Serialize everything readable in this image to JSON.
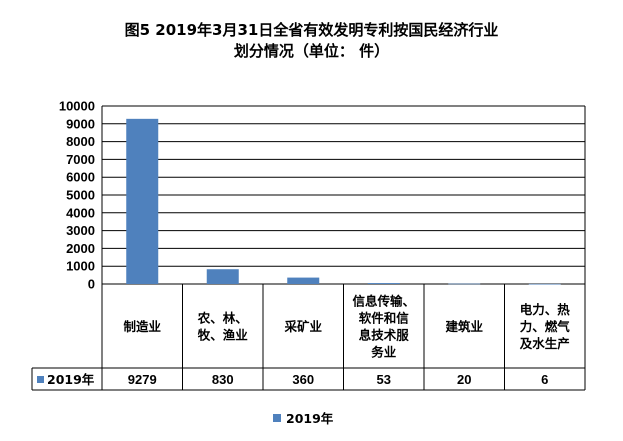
{
  "chart_data": {
    "type": "bar",
    "title": [
      "图5  2019年3月31日全省有效发明专利按国民经济行业",
      "划分情况（单位：  件）"
    ],
    "categories": [
      [
        "制造业"
      ],
      [
        "农、林、",
        "牧、渔业"
      ],
      [
        "采矿业"
      ],
      [
        "信息传输、",
        "软件和信",
        "息技术服",
        "务业"
      ],
      [
        "建筑业"
      ],
      [
        "电力、热",
        "力、燃气",
        "及水生产"
      ]
    ],
    "series": [
      {
        "name": "2019年",
        "values": [
          9279,
          830,
          360,
          53,
          20,
          6
        ],
        "color": "#4F81BD"
      }
    ],
    "ylim": [
      0,
      10000
    ],
    "yticks": [
      0,
      1000,
      2000,
      3000,
      4000,
      5000,
      6000,
      7000,
      8000,
      9000,
      10000
    ],
    "grid": true,
    "legend": "bottom",
    "data_table": true
  }
}
